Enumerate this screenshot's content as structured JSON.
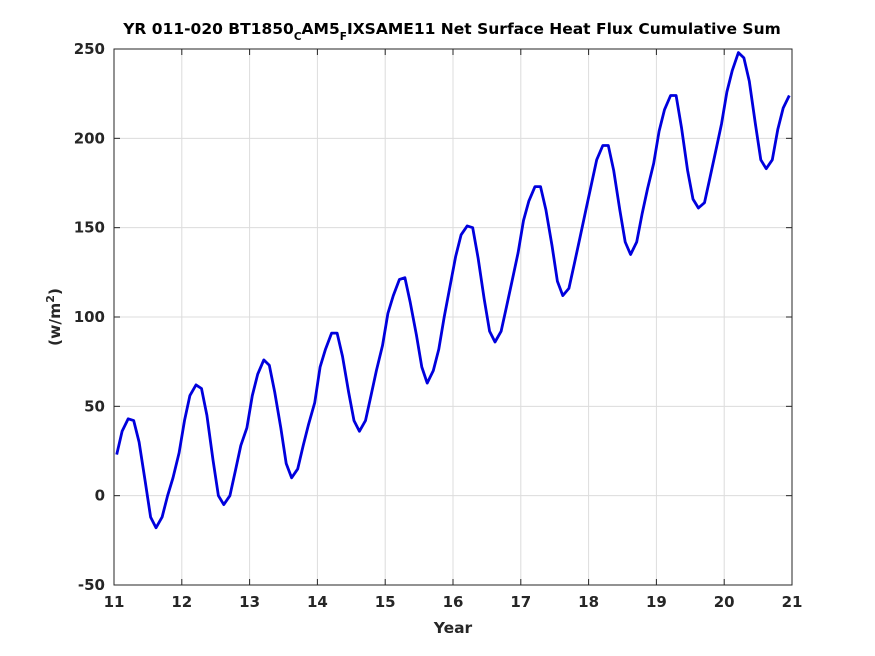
{
  "chart_data": {
    "type": "line",
    "title_parts": {
      "a": "YR 011-020 BT1850",
      "b": "C",
      "c": "AM5",
      "d": "F",
      "e": "IXSAME11 Net Surface Heat Flux  Cumulative Sum"
    },
    "xlabel": "Year",
    "ylabel_parts": {
      "base": "(w/m",
      "sup": "2",
      "close": ")"
    },
    "xlim": [
      11,
      21
    ],
    "ylim": [
      -50,
      250
    ],
    "xticks": [
      "11",
      "12",
      "13",
      "14",
      "15",
      "16",
      "17",
      "18",
      "19",
      "20",
      "21"
    ],
    "yticks": [
      "-50",
      "0",
      "50",
      "100",
      "150",
      "200",
      "250"
    ],
    "grid": true,
    "line_color": "#0000dd",
    "series": [
      {
        "x": [
          11.04,
          11.12,
          11.21,
          11.29,
          11.37,
          11.46,
          11.54,
          11.62,
          11.71,
          11.79,
          11.87,
          11.96,
          12.04,
          12.12,
          12.21,
          12.29,
          12.37,
          12.46,
          12.54,
          12.62,
          12.71,
          12.79,
          12.87,
          12.96,
          13.04,
          13.12,
          13.21,
          13.29,
          13.37,
          13.46,
          13.54,
          13.62,
          13.71,
          13.79,
          13.87,
          13.96,
          14.04,
          14.12,
          14.21,
          14.29,
          14.37,
          14.46,
          14.54,
          14.62,
          14.71,
          14.79,
          14.87,
          14.96,
          15.04,
          15.12,
          15.21,
          15.29,
          15.37,
          15.46,
          15.54,
          15.62,
          15.71,
          15.79,
          15.87,
          15.96,
          16.04,
          16.12,
          16.21,
          16.29,
          16.37,
          16.46,
          16.54,
          16.62,
          16.71,
          16.79,
          16.87,
          16.96,
          17.04,
          17.12,
          17.21,
          17.29,
          17.37,
          17.46,
          17.54,
          17.62,
          17.71,
          17.79,
          17.87,
          17.96,
          18.04,
          18.12,
          18.21,
          18.29,
          18.37,
          18.46,
          18.54,
          18.62,
          18.71,
          18.79,
          18.87,
          18.96,
          19.04,
          19.12,
          19.21,
          19.29,
          19.37,
          19.46,
          19.54,
          19.62,
          19.71,
          19.79,
          19.87,
          19.96,
          20.04,
          20.12,
          20.21,
          20.29,
          20.37,
          20.46,
          20.54,
          20.62,
          20.71,
          20.79,
          20.87,
          20.96
        ],
        "values": [
          23,
          36,
          43,
          42,
          30,
          8,
          -12,
          -18,
          -12,
          0,
          10,
          24,
          42,
          56,
          62,
          60,
          45,
          20,
          0,
          -5,
          0,
          14,
          28,
          38,
          56,
          68,
          76,
          73,
          58,
          38,
          18,
          10,
          15,
          28,
          40,
          52,
          72,
          82,
          91,
          91,
          78,
          58,
          42,
          36,
          42,
          56,
          70,
          84,
          102,
          112,
          121,
          122,
          108,
          90,
          72,
          63,
          70,
          82,
          100,
          118,
          134,
          146,
          151,
          150,
          133,
          110,
          92,
          86,
          92,
          106,
          120,
          136,
          154,
          165,
          173,
          173,
          160,
          140,
          120,
          112,
          116,
          130,
          144,
          160,
          174,
          188,
          196,
          196,
          182,
          160,
          142,
          135,
          142,
          158,
          172,
          186,
          204,
          216,
          224,
          224,
          206,
          182,
          166,
          161,
          164,
          178,
          192,
          208,
          226,
          238,
          248,
          245,
          232,
          208,
          188,
          183,
          188,
          205,
          217,
          224
        ]
      }
    ]
  }
}
